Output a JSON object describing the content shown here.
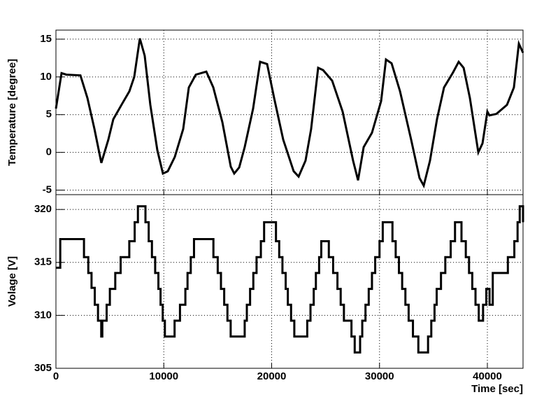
{
  "chart_data": [
    {
      "type": "line",
      "ylabel": "Temperature [degree]",
      "color": "#000000",
      "grid": true,
      "xlim": [
        0,
        43306
      ],
      "ylim": [
        -5.6,
        16.2
      ],
      "yticks": [
        -5,
        0,
        5,
        10,
        15
      ],
      "x": [
        0,
        520,
        970,
        2270,
        2920,
        3570,
        4210,
        4860,
        5320,
        6160,
        6810,
        7260,
        7780,
        8230,
        8750,
        9400,
        9920,
        10370,
        11020,
        11800,
        12320,
        12970,
        13940,
        14590,
        15430,
        16210,
        16530,
        16990,
        17500,
        18280,
        18930,
        19580,
        20230,
        21070,
        22040,
        22500,
        23140,
        23660,
        24310,
        24770,
        25610,
        26580,
        27550,
        28010,
        28530,
        29300,
        30150,
        30600,
        31120,
        31900,
        32930,
        33710,
        34100,
        34680,
        35330,
        35980,
        36820,
        37340,
        37800,
        38380,
        39160,
        39550,
        40000,
        40190,
        40840,
        41820,
        42460,
        42920,
        43306
      ],
      "values": [
        5.8,
        10.5,
        10.3,
        10.2,
        7.2,
        3.1,
        -1.4,
        1.7,
        4.4,
        6.5,
        8.1,
        10,
        15.1,
        12.8,
        6.3,
        0.3,
        -2.8,
        -2.5,
        -0.6,
        3.1,
        8.6,
        10.3,
        10.7,
        8.6,
        4,
        -1.9,
        -2.8,
        -2,
        0.7,
        5.8,
        12,
        11.7,
        7.2,
        1.7,
        -2.5,
        -3.2,
        -1.1,
        3.1,
        11.2,
        10.9,
        9.5,
        5.4,
        -1.1,
        -3.7,
        0.7,
        2.6,
        6.8,
        12.3,
        11.8,
        8.1,
        1.7,
        -3.4,
        -4.4,
        -1.1,
        4.4,
        8.6,
        10.6,
        12,
        11.2,
        7.2,
        0,
        1.2,
        5.4,
        4.9,
        5.1,
        6.3,
        8.6,
        14.4,
        13.2
      ]
    },
    {
      "type": "line",
      "step": "post",
      "ylabel": "Volage [V]",
      "xlabel": "Time [sec]",
      "color": "#000000",
      "grid": true,
      "xlim": [
        0,
        43306
      ],
      "xticks": [
        0,
        10000,
        20000,
        30000,
        40000
      ],
      "ylim": [
        305,
        321.4
      ],
      "yticks": [
        305,
        310,
        315,
        320
      ],
      "x": [
        0,
        400,
        2600,
        3000,
        3300,
        3600,
        3900,
        4200,
        4300,
        4700,
        5000,
        5500,
        6000,
        6800,
        7300,
        7600,
        8300,
        8600,
        8900,
        9200,
        9500,
        9700,
        9900,
        10100,
        11000,
        11500,
        12000,
        12200,
        12500,
        12800,
        14600,
        15000,
        15300,
        15600,
        15900,
        16200,
        17500,
        17700,
        18000,
        18300,
        18600,
        19000,
        19300,
        20400,
        20700,
        21000,
        21300,
        21500,
        21800,
        22100,
        23300,
        23600,
        23900,
        24100,
        24400,
        24600,
        25300,
        25700,
        26100,
        26400,
        26700,
        27400,
        27700,
        28200,
        28400,
        28700,
        29000,
        29300,
        29600,
        30000,
        30300,
        31200,
        31500,
        31800,
        32100,
        32400,
        32700,
        33100,
        33600,
        34500,
        34800,
        35100,
        35300,
        35700,
        36100,
        36600,
        37000,
        37600,
        38000,
        38300,
        38600,
        38900,
        39200,
        39600,
        39900,
        40200,
        40500,
        41900,
        42500,
        42800,
        43000,
        43306
      ],
      "values": [
        314.5,
        317.2,
        315.5,
        314,
        312.6,
        311,
        309.5,
        308,
        309.5,
        311,
        312.5,
        314,
        315.5,
        317,
        318.8,
        320.3,
        318.8,
        317,
        315.5,
        314,
        312.5,
        311,
        309.5,
        308,
        309.5,
        311,
        312.5,
        314,
        315.5,
        317.2,
        315.5,
        314,
        312.5,
        311,
        309.5,
        308,
        309.5,
        311,
        312.5,
        314,
        315.5,
        317,
        318.8,
        317,
        315.5,
        314,
        312.5,
        311,
        309.5,
        308,
        309.5,
        311,
        312.5,
        314,
        315.5,
        317,
        315.5,
        314,
        312.5,
        311,
        309.5,
        308,
        306.5,
        308,
        309.5,
        311,
        312.5,
        314,
        315.5,
        317,
        318.8,
        317,
        315.5,
        314,
        312.5,
        311,
        309.5,
        308,
        306.5,
        308,
        309.5,
        311,
        312.5,
        314,
        315.5,
        317,
        318.8,
        317,
        315.5,
        314,
        312.5,
        311,
        309.5,
        311,
        312.5,
        311,
        314,
        315.5,
        317,
        318.8,
        320.3,
        318.8
      ]
    }
  ]
}
